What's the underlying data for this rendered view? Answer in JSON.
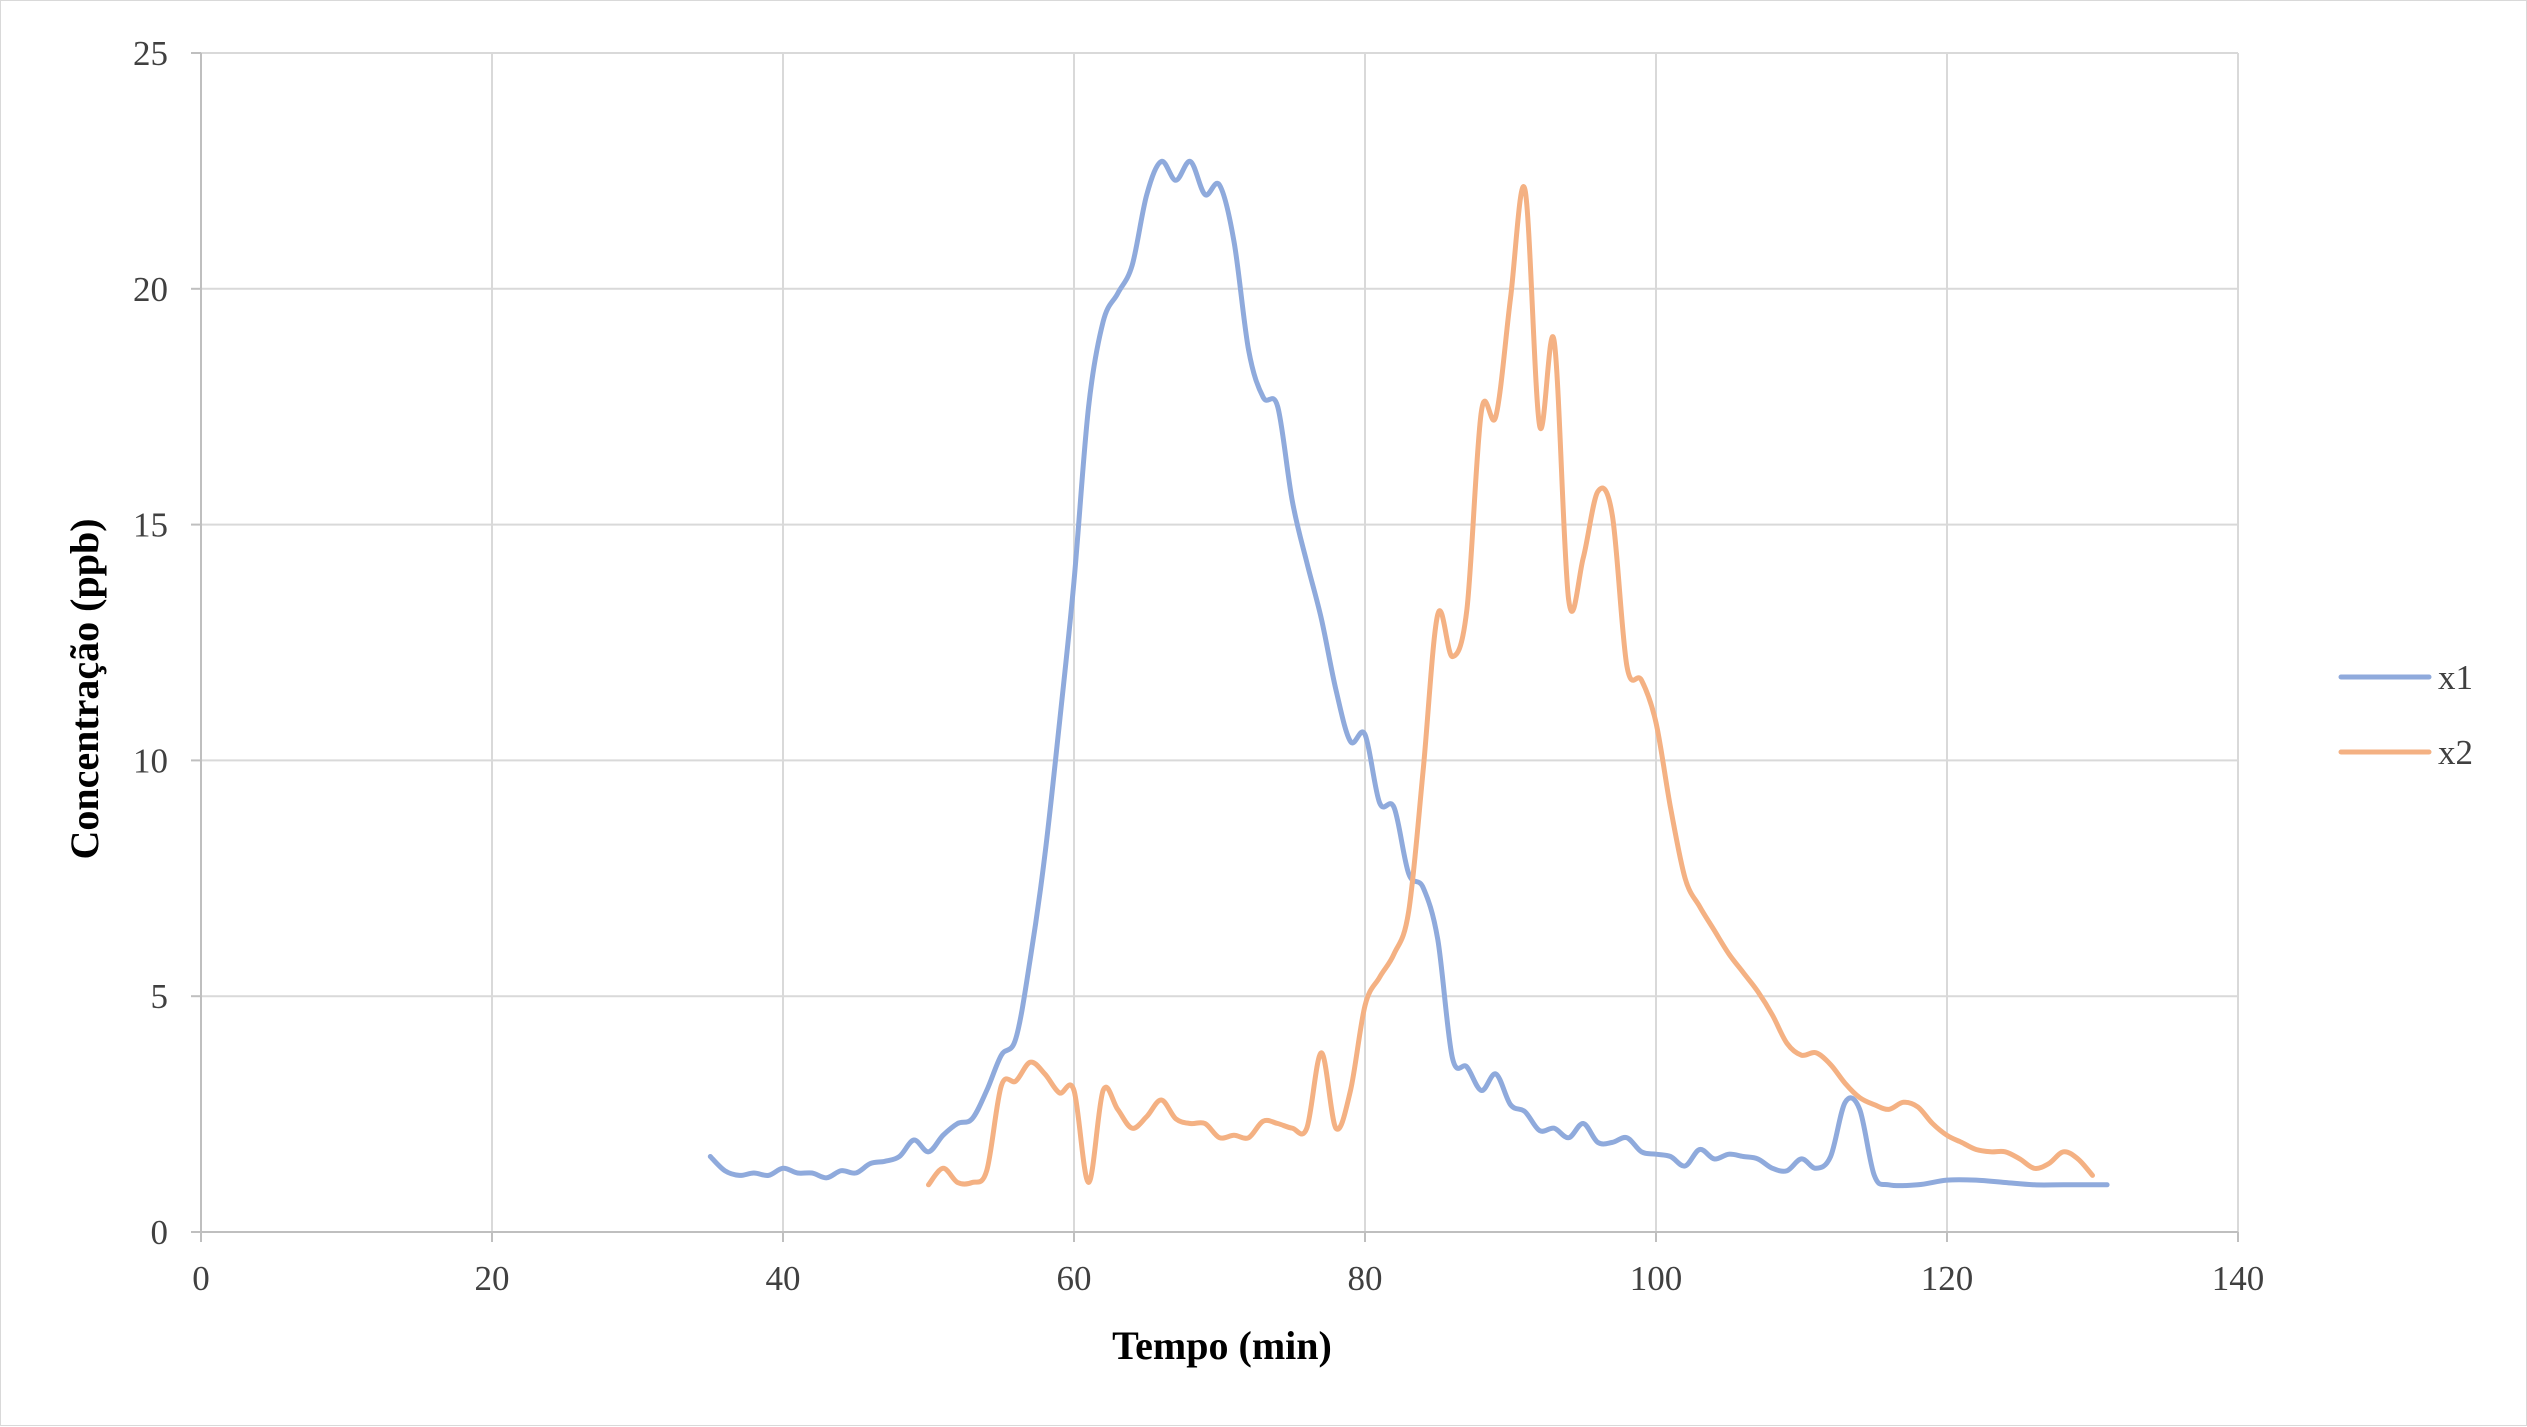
{
  "chart_data": {
    "type": "line",
    "title": "",
    "xlabel": "Tempo (min)",
    "ylabel": "Concentração (ppb)",
    "xlim": [
      0,
      140
    ],
    "ylim": [
      0,
      25
    ],
    "xticks": [
      "0",
      "20",
      "40",
      "60",
      "80",
      "100",
      "120",
      "140"
    ],
    "yticks": [
      "0",
      "5",
      "10",
      "15",
      "20",
      "25"
    ],
    "grid": true,
    "legend_position": "right",
    "series": [
      {
        "name": "x1",
        "color": "#8faadc",
        "points": [
          [
            35,
            1.6
          ],
          [
            36,
            1.3
          ],
          [
            37,
            1.2
          ],
          [
            38,
            1.25
          ],
          [
            39,
            1.2
          ],
          [
            40,
            1.35
          ],
          [
            41,
            1.25
          ],
          [
            42,
            1.25
          ],
          [
            43,
            1.15
          ],
          [
            44,
            1.3
          ],
          [
            45,
            1.25
          ],
          [
            46,
            1.45
          ],
          [
            47,
            1.5
          ],
          [
            48,
            1.6
          ],
          [
            49,
            1.95
          ],
          [
            50,
            1.7
          ],
          [
            51,
            2.05
          ],
          [
            52,
            2.3
          ],
          [
            53,
            2.4
          ],
          [
            54,
            3.0
          ],
          [
            55,
            3.75
          ],
          [
            56,
            4.1
          ],
          [
            57,
            5.8
          ],
          [
            58,
            8.0
          ],
          [
            59,
            10.8
          ],
          [
            60,
            13.8
          ],
          [
            61,
            17.5
          ],
          [
            62,
            19.3
          ],
          [
            63,
            19.9
          ],
          [
            64,
            20.5
          ],
          [
            65,
            22.0
          ],
          [
            66,
            22.7
          ],
          [
            67,
            22.3
          ],
          [
            68,
            22.7
          ],
          [
            69,
            22.0
          ],
          [
            70,
            22.2
          ],
          [
            71,
            21.0
          ],
          [
            72,
            18.7
          ],
          [
            73,
            17.7
          ],
          [
            74,
            17.5
          ],
          [
            75,
            15.5
          ],
          [
            76,
            14.2
          ],
          [
            77,
            13.0
          ],
          [
            78,
            11.5
          ],
          [
            79,
            10.4
          ],
          [
            80,
            10.55
          ],
          [
            81,
            9.1
          ],
          [
            82,
            9.0
          ],
          [
            83,
            7.6
          ],
          [
            84,
            7.3
          ],
          [
            85,
            6.2
          ],
          [
            86,
            3.7
          ],
          [
            87,
            3.5
          ],
          [
            88,
            3.0
          ],
          [
            89,
            3.35
          ],
          [
            90,
            2.7
          ],
          [
            91,
            2.55
          ],
          [
            92,
            2.15
          ],
          [
            93,
            2.2
          ],
          [
            94,
            2.0
          ],
          [
            95,
            2.3
          ],
          [
            96,
            1.9
          ],
          [
            97,
            1.9
          ],
          [
            98,
            2.0
          ],
          [
            99,
            1.7
          ],
          [
            100,
            1.65
          ],
          [
            101,
            1.6
          ],
          [
            102,
            1.4
          ],
          [
            103,
            1.75
          ],
          [
            104,
            1.55
          ],
          [
            105,
            1.65
          ],
          [
            106,
            1.6
          ],
          [
            107,
            1.55
          ],
          [
            108,
            1.35
          ],
          [
            109,
            1.3
          ],
          [
            110,
            1.55
          ],
          [
            111,
            1.35
          ],
          [
            112,
            1.6
          ],
          [
            113,
            2.75
          ],
          [
            114,
            2.6
          ],
          [
            115,
            1.2
          ],
          [
            116,
            1.0
          ],
          [
            118,
            1.0
          ],
          [
            120,
            1.1
          ],
          [
            122,
            1.1
          ],
          [
            124,
            1.05
          ],
          [
            126,
            1.0
          ],
          [
            128,
            1.0
          ],
          [
            131,
            1.0
          ]
        ]
      },
      {
        "name": "x2",
        "color": "#f4b183",
        "points": [
          [
            50,
            1.0
          ],
          [
            51,
            1.35
          ],
          [
            52,
            1.05
          ],
          [
            53,
            1.05
          ],
          [
            54,
            1.3
          ],
          [
            55,
            3.1
          ],
          [
            56,
            3.2
          ],
          [
            57,
            3.6
          ],
          [
            58,
            3.35
          ],
          [
            59,
            2.95
          ],
          [
            60,
            3.0
          ],
          [
            61,
            1.05
          ],
          [
            62,
            3.0
          ],
          [
            63,
            2.6
          ],
          [
            64,
            2.2
          ],
          [
            65,
            2.45
          ],
          [
            66,
            2.8
          ],
          [
            67,
            2.4
          ],
          [
            68,
            2.3
          ],
          [
            69,
            2.3
          ],
          [
            70,
            2.0
          ],
          [
            71,
            2.05
          ],
          [
            72,
            2.0
          ],
          [
            73,
            2.35
          ],
          [
            74,
            2.3
          ],
          [
            75,
            2.2
          ],
          [
            76,
            2.2
          ],
          [
            77,
            3.8
          ],
          [
            78,
            2.2
          ],
          [
            79,
            3.0
          ],
          [
            80,
            4.8
          ],
          [
            81,
            5.4
          ],
          [
            82,
            5.9
          ],
          [
            83,
            6.8
          ],
          [
            84,
            9.8
          ],
          [
            85,
            13.1
          ],
          [
            86,
            12.2
          ],
          [
            87,
            13.2
          ],
          [
            88,
            17.4
          ],
          [
            89,
            17.3
          ],
          [
            90,
            19.8
          ],
          [
            91,
            22.1
          ],
          [
            92,
            17.1
          ],
          [
            93,
            18.9
          ],
          [
            94,
            13.4
          ],
          [
            95,
            14.3
          ],
          [
            96,
            15.7
          ],
          [
            97,
            15.2
          ],
          [
            98,
            12.0
          ],
          [
            99,
            11.7
          ],
          [
            100,
            10.8
          ],
          [
            101,
            9.0
          ],
          [
            102,
            7.5
          ],
          [
            103,
            6.9
          ],
          [
            104,
            6.4
          ],
          [
            105,
            5.9
          ],
          [
            106,
            5.5
          ],
          [
            107,
            5.1
          ],
          [
            108,
            4.6
          ],
          [
            109,
            4.0
          ],
          [
            110,
            3.75
          ],
          [
            111,
            3.8
          ],
          [
            112,
            3.55
          ],
          [
            113,
            3.15
          ],
          [
            114,
            2.85
          ],
          [
            115,
            2.7
          ],
          [
            116,
            2.6
          ],
          [
            117,
            2.75
          ],
          [
            118,
            2.65
          ],
          [
            119,
            2.3
          ],
          [
            120,
            2.05
          ],
          [
            121,
            1.9
          ],
          [
            122,
            1.75
          ],
          [
            123,
            1.7
          ],
          [
            124,
            1.7
          ],
          [
            125,
            1.55
          ],
          [
            126,
            1.35
          ],
          [
            127,
            1.45
          ],
          [
            128,
            1.7
          ],
          [
            129,
            1.55
          ],
          [
            130,
            1.2
          ]
        ]
      }
    ]
  }
}
